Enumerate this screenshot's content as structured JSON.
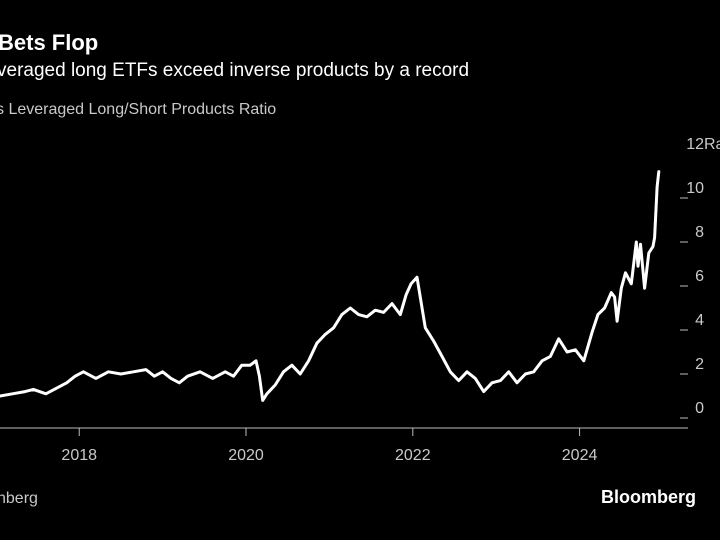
{
  "header": {
    "title": "Bets Flop",
    "subtitle": "veraged long ETFs exceed inverse products by a record",
    "series_label": "s Leveraged Long/Short Products Ratio"
  },
  "footer": {
    "source": "nberg",
    "brand": "Bloomberg"
  },
  "colors": {
    "background": "#000000",
    "line": "#ffffff",
    "axis_text": "#c9c9c9"
  },
  "chart_data": {
    "type": "line",
    "title": "Bets Flop",
    "subtitle": "veraged long ETFs exceed inverse products by a record",
    "ylabel": "Ratio",
    "xlim": [
      2017.05,
      2025.3
    ],
    "ylim": [
      0,
      12
    ],
    "y_ticks": [
      0,
      2,
      4,
      6,
      8,
      10,
      12
    ],
    "y_tick_labels": [
      "0",
      "2",
      "4",
      "6",
      "8",
      "10",
      "12"
    ],
    "y_unit_label": "Ratio",
    "x_ticks": [
      2018,
      2020,
      2022,
      2024
    ],
    "x_tick_labels": [
      "2018",
      "2020",
      "2022",
      "2024"
    ],
    "grid": false,
    "legend": "none",
    "series": [
      {
        "name": "Leveraged Long/Short Products Ratio",
        "x": [
          2017.05,
          2017.2,
          2017.35,
          2017.45,
          2017.6,
          2017.75,
          2017.85,
          2017.95,
          2018.05,
          2018.2,
          2018.35,
          2018.5,
          2018.65,
          2018.8,
          2018.9,
          2019.0,
          2019.1,
          2019.2,
          2019.3,
          2019.45,
          2019.6,
          2019.75,
          2019.85,
          2019.95,
          2020.05,
          2020.12,
          2020.16,
          2020.2,
          2020.25,
          2020.35,
          2020.45,
          2020.55,
          2020.65,
          2020.75,
          2020.85,
          2020.95,
          2021.05,
          2021.15,
          2021.25,
          2021.35,
          2021.45,
          2021.55,
          2021.65,
          2021.75,
          2021.85,
          2021.92,
          2021.98,
          2022.05,
          2022.15,
          2022.25,
          2022.35,
          2022.45,
          2022.55,
          2022.65,
          2022.75,
          2022.85,
          2022.95,
          2023.05,
          2023.15,
          2023.25,
          2023.35,
          2023.45,
          2023.55,
          2023.65,
          2023.75,
          2023.85,
          2023.95,
          2024.05,
          2024.15,
          2024.22,
          2024.3,
          2024.38,
          2024.42,
          2024.45,
          2024.5,
          2024.55,
          2024.62,
          2024.68,
          2024.7,
          2024.73,
          2024.78,
          2024.83,
          2024.88,
          2024.9,
          2024.93,
          2024.95
        ],
        "y": [
          0.5,
          0.6,
          0.7,
          0.8,
          0.6,
          0.9,
          1.1,
          1.4,
          1.6,
          1.3,
          1.6,
          1.5,
          1.6,
          1.7,
          1.4,
          1.6,
          1.3,
          1.1,
          1.4,
          1.6,
          1.3,
          1.6,
          1.4,
          1.9,
          1.9,
          2.1,
          1.4,
          0.3,
          0.6,
          1.0,
          1.6,
          1.9,
          1.5,
          2.1,
          2.9,
          3.3,
          3.6,
          4.2,
          4.5,
          4.2,
          4.1,
          4.4,
          4.3,
          4.7,
          4.2,
          5.1,
          5.6,
          5.9,
          3.6,
          3.0,
          2.3,
          1.6,
          1.2,
          1.6,
          1.3,
          0.7,
          1.1,
          1.2,
          1.6,
          1.1,
          1.5,
          1.6,
          2.1,
          2.3,
          3.1,
          2.5,
          2.6,
          2.1,
          3.4,
          4.2,
          4.5,
          5.2,
          5.0,
          3.9,
          5.4,
          6.1,
          5.6,
          7.5,
          6.4,
          7.4,
          5.4,
          7.0,
          7.3,
          7.7,
          10.0,
          10.7
        ]
      }
    ]
  }
}
